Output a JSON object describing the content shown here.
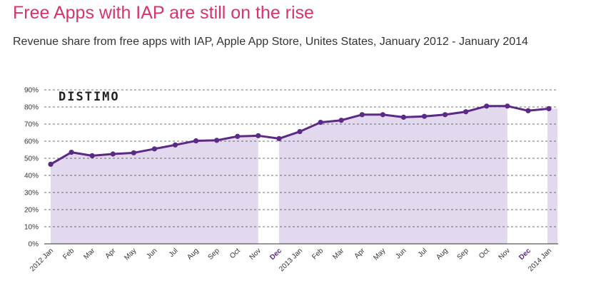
{
  "header": {
    "title": "Free Apps with IAP are still on the rise",
    "subtitle": "Revenue share from free apps with IAP, Apple App Store, Unites States, January 2012 - January 2014"
  },
  "logo": {
    "text": "DISTIMO"
  },
  "colors": {
    "title": "#d6336f",
    "line": "#5a2a86",
    "area": "#e3d9ee",
    "highlight_label": "#5a2a86"
  },
  "chart_data": {
    "type": "line",
    "title": "Free Apps with IAP are still on the rise",
    "subtitle": "Revenue share from free apps with IAP, Apple App Store, Unites States, January 2012 - January 2014",
    "xlabel": "",
    "ylabel": "",
    "ylim": [
      0,
      90
    ],
    "y_ticks": [
      "90%",
      "80%",
      "70%",
      "60%",
      "50%",
      "40%",
      "30%",
      "20%",
      "10%",
      "0%"
    ],
    "y_tick_values": [
      90,
      80,
      70,
      60,
      50,
      40,
      30,
      20,
      10,
      0
    ],
    "grid": "horizontal dashed",
    "categories": [
      "2012 Jan",
      "Feb",
      "Mar",
      "Apr",
      "May",
      "Jun",
      "Jul",
      "Aug",
      "Sep",
      "Oct",
      "Nov",
      "Dec",
      "2013 Jan",
      "Feb",
      "Mar",
      "Apr",
      "May",
      "Jun",
      "Jul",
      "Aug",
      "Sep",
      "Oct",
      "Nov",
      "Dec",
      "2014 Jan"
    ],
    "highlighted_categories": [
      11,
      23
    ],
    "area_segments": [
      [
        0,
        10
      ],
      [
        11,
        22
      ],
      [
        24,
        24
      ]
    ],
    "series": [
      {
        "values": [
          46.5,
          53.5,
          51.5,
          52.5,
          53.2,
          55.5,
          57.8,
          60.2,
          60.5,
          62.8,
          63.2,
          61.5,
          65.6,
          71.0,
          72.2,
          75.5,
          75.5,
          74.0,
          74.5,
          75.5,
          77.2,
          80.5,
          80.5,
          77.8,
          79.0
        ]
      }
    ]
  }
}
